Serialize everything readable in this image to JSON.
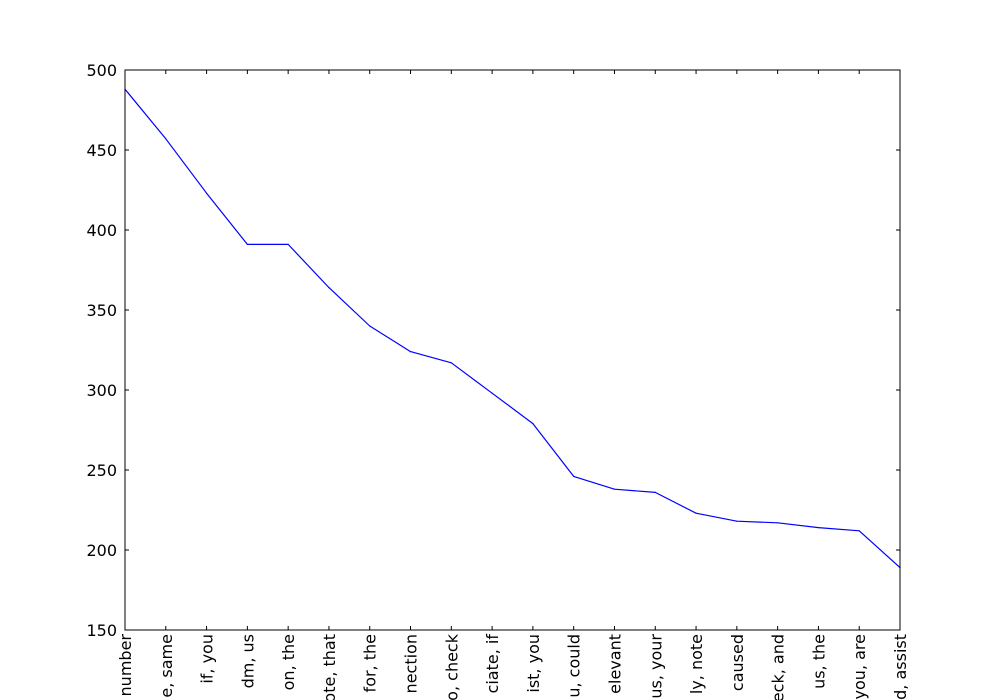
{
  "chart_data": {
    "type": "line",
    "title": "",
    "xlabel": "",
    "ylabel": "",
    "categories": [
      "number",
      "e, same",
      "if, you",
      "dm, us",
      "on, the",
      "ote, that",
      "for, the",
      "nection",
      "o, check",
      "ciate, if",
      "ist, you",
      "u, could",
      "elevant",
      "us, your",
      "ly, note",
      "caused",
      "eck, and",
      "us, the",
      "you, are",
      "d, assist"
    ],
    "series": [
      {
        "values": [
          488,
          457,
          423,
          391,
          391,
          364,
          340,
          324,
          317,
          298,
          279,
          246,
          238,
          236,
          223,
          218,
          217,
          214,
          212,
          189
        ]
      }
    ],
    "ylim": [
      150,
      500
    ],
    "yticks": [
      150,
      200,
      250,
      300,
      350,
      400,
      450,
      500
    ],
    "line_color": "#0000ff",
    "grid": false,
    "legend": "none"
  }
}
